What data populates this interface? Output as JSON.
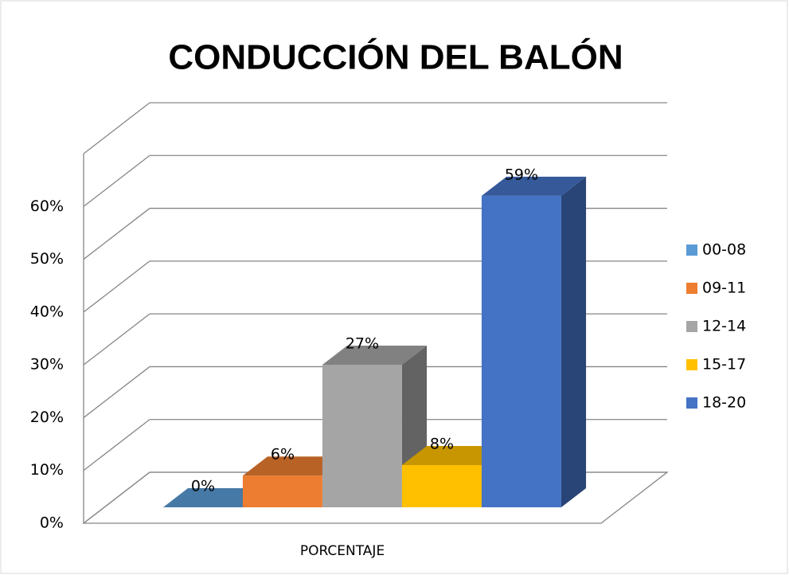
{
  "chart_data": {
    "type": "bar3d",
    "title": "CONDUCCIÓN DEL BALÓN",
    "categories": [
      "PORCENTAJE"
    ],
    "series": [
      {
        "name": "00-08",
        "color": "#5b9bd5",
        "values": [
          0
        ],
        "value_labels": [
          "0%"
        ]
      },
      {
        "name": "09-11",
        "color": "#ed7d31",
        "values": [
          6
        ],
        "value_labels": [
          "6%"
        ]
      },
      {
        "name": "12-14",
        "color": "#a5a5a5",
        "values": [
          27
        ],
        "value_labels": [
          "27%"
        ]
      },
      {
        "name": "15-17",
        "color": "#ffc000",
        "values": [
          8
        ],
        "value_labels": [
          "8%"
        ]
      },
      {
        "name": "18-20",
        "color": "#4472c4",
        "values": [
          59
        ],
        "value_labels": [
          "59%"
        ]
      }
    ],
    "ylim": [
      0,
      70
    ],
    "yticks": [
      {
        "value": 0,
        "label": "0%"
      },
      {
        "value": 10,
        "label": "10%"
      },
      {
        "value": 20,
        "label": "20%"
      },
      {
        "value": 30,
        "label": "30%"
      },
      {
        "value": 40,
        "label": "40%"
      },
      {
        "value": 50,
        "label": "50%"
      },
      {
        "value": 60,
        "label": "60%"
      }
    ],
    "grid": true,
    "legend": "right"
  }
}
